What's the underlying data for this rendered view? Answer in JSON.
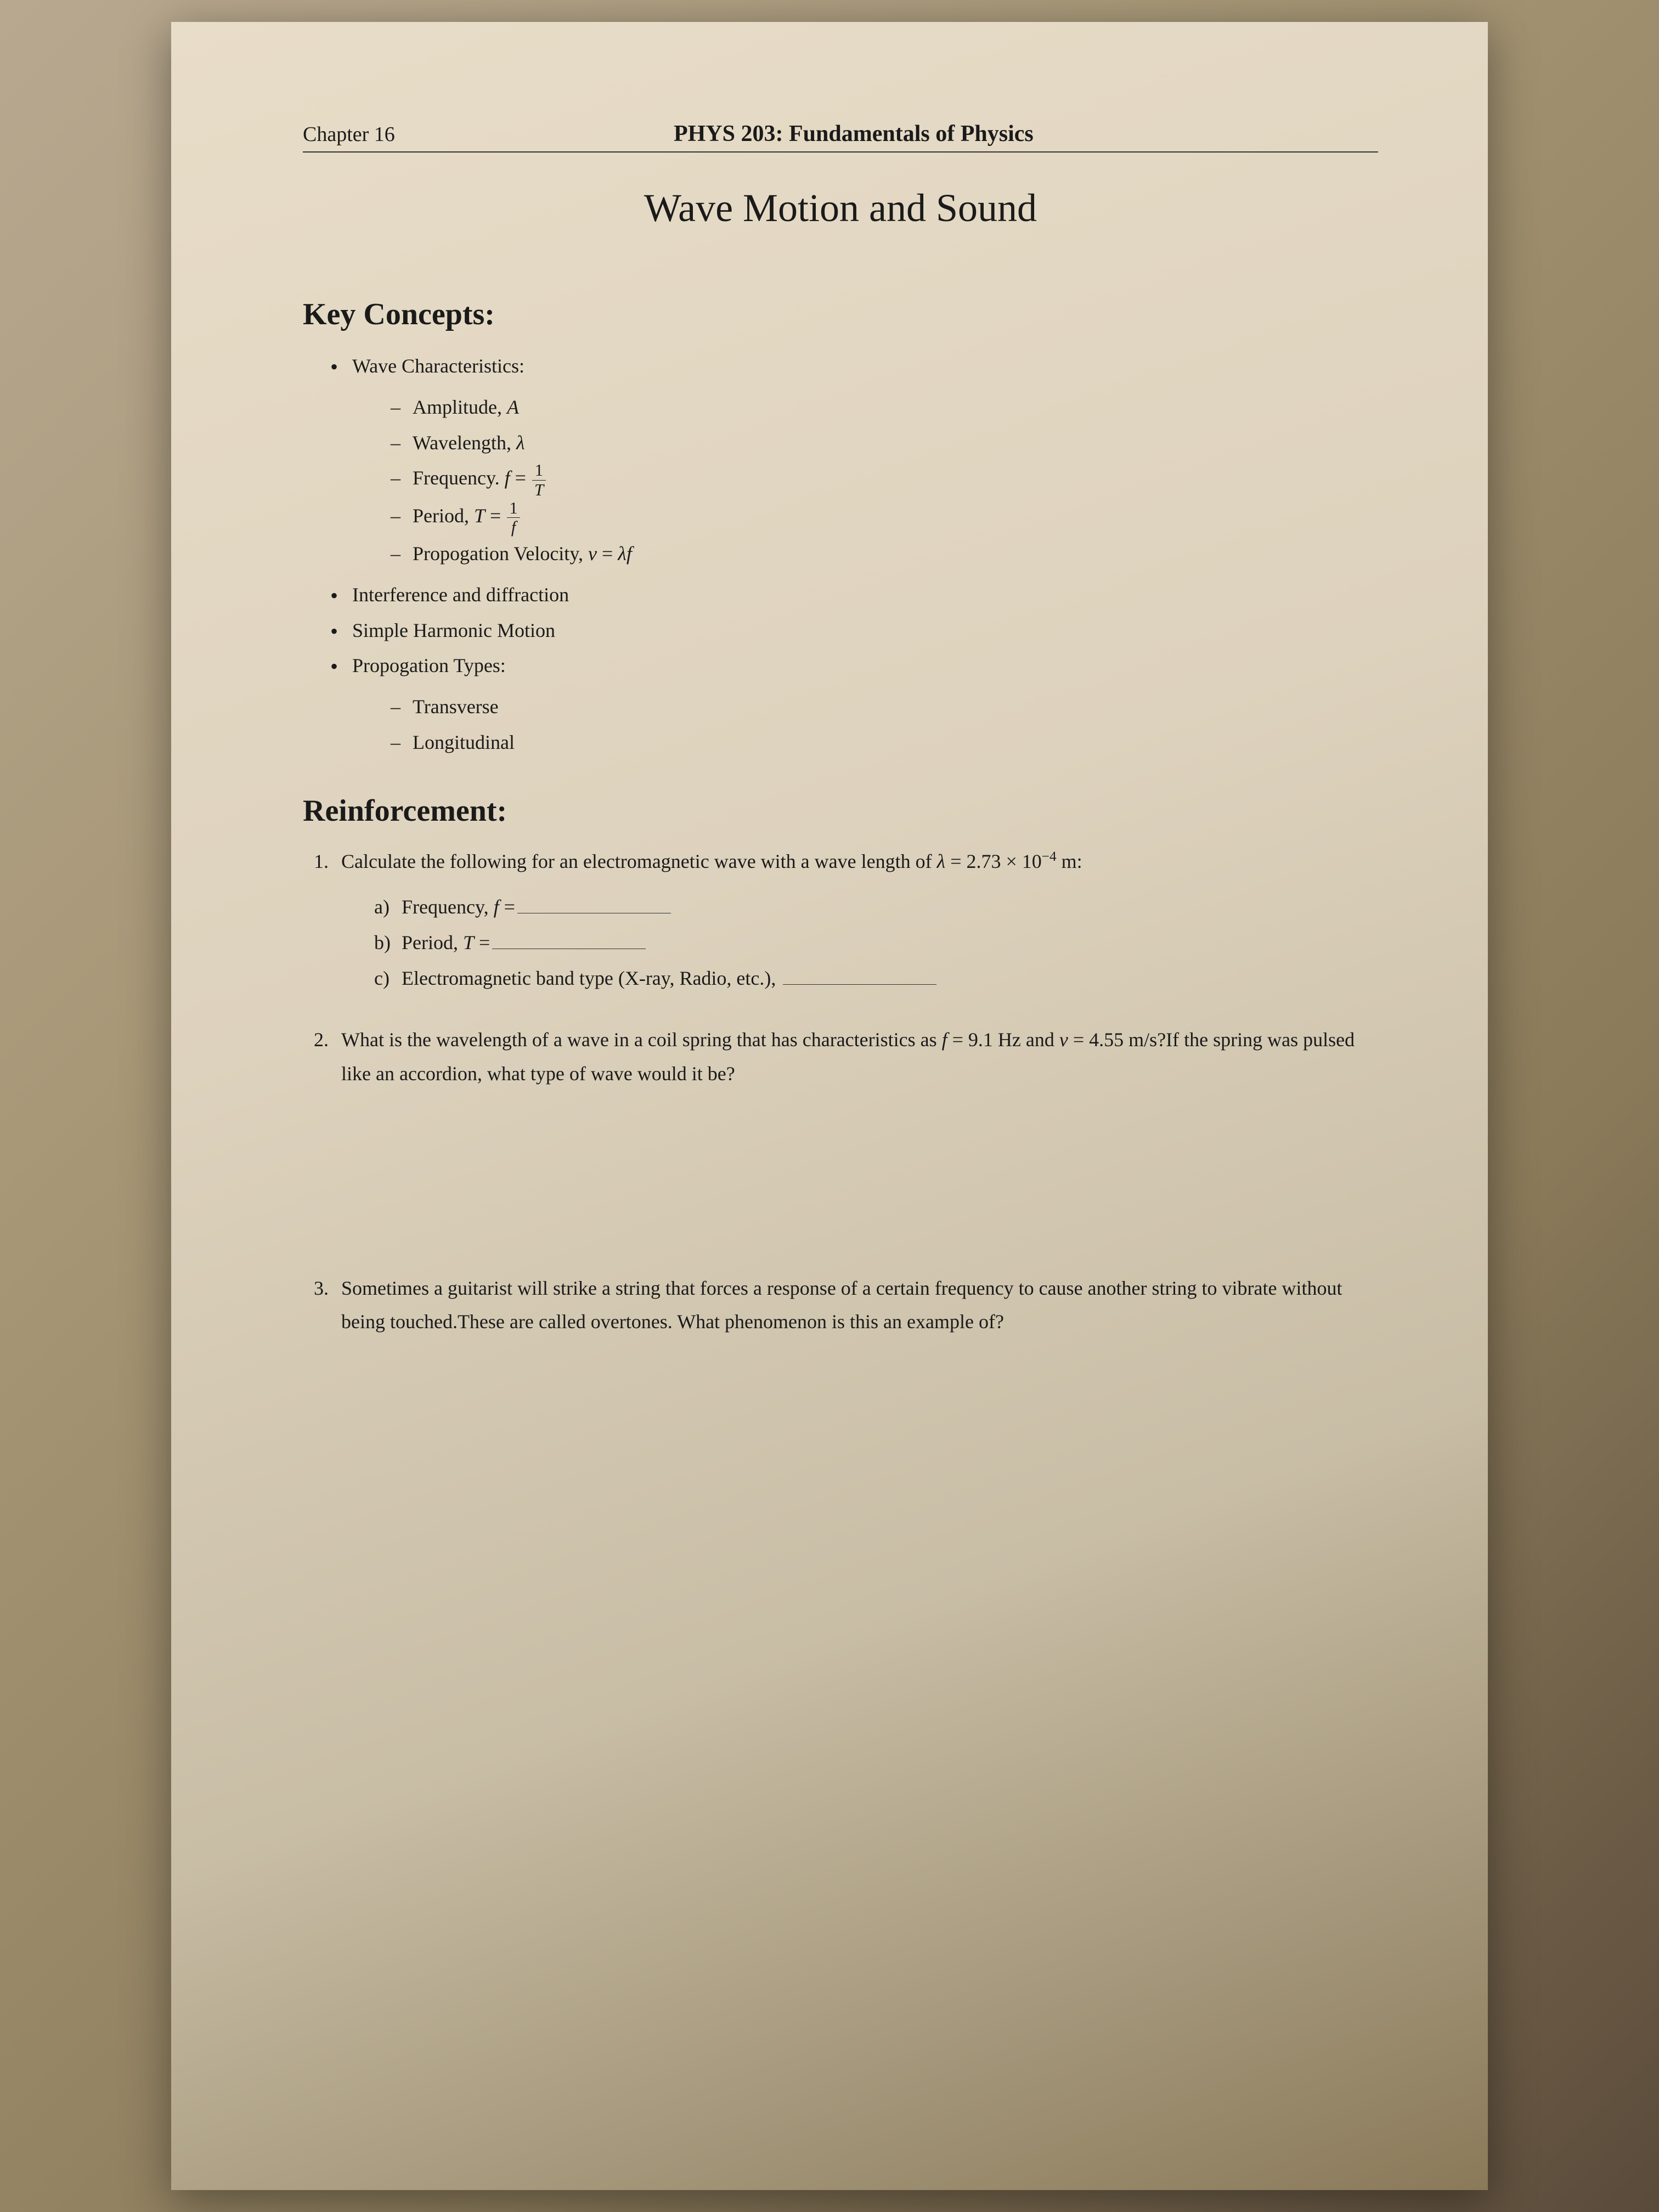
{
  "header": {
    "chapter": "Chapter 16",
    "course": "PHYS 203: Fundamentals of Physics"
  },
  "title": "Wave Motion and Sound",
  "keyConcepts": {
    "heading": "Key Concepts:",
    "items": [
      {
        "label": "Wave Characteristics:",
        "sub": [
          "Amplitude, A",
          "Wavelength, λ",
          "Frequency. f = 1/T",
          "Period, T = 1/f",
          "Propogation Velocity, v = λf"
        ]
      },
      {
        "label": "Interference and diffraction"
      },
      {
        "label": "Simple Harmonic Motion"
      },
      {
        "label": "Propogation Types:",
        "sub": [
          "Transverse",
          "Longitudinal"
        ]
      }
    ]
  },
  "reinforcement": {
    "heading": "Reinforcement:",
    "q1": {
      "text_pre": "Calculate the following for an electromagnetic wave with a wave length of ",
      "lambda_expr": "λ = 2.73 × 10⁻⁴ m:",
      "a_label": "a)",
      "a_text": "Frequency, f =",
      "b_label": "b)",
      "b_text": "Period, T =",
      "c_label": "c)",
      "c_text": "Electromagnetic band type (X-ray, Radio, etc.),"
    },
    "q2": "What is the wavelength of a wave in a coil spring that has characteristics as f = 9.1 Hz and v = 4.55 m/s?If the spring was pulsed like an accordion, what type of wave would it be?",
    "q3": "Sometimes a guitarist will strike a string that forces a response of a certain frequency to cause another string to vibrate without being touched.These are called overtones. What phenomenon is this an example of?"
  }
}
